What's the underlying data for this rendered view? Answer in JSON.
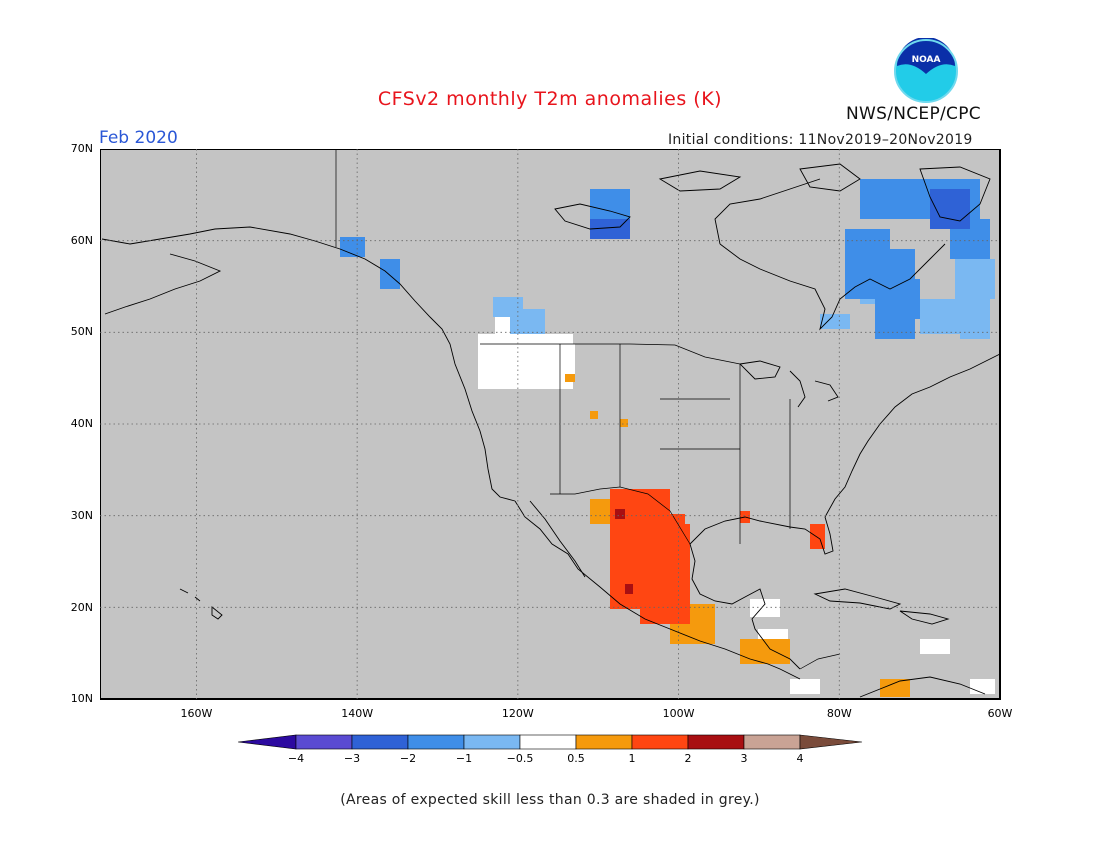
{
  "title": "CFSv2 monthly T2m anomalies (K)",
  "agency": "NWS/NCEP/CPC",
  "logo_text": "NOAA",
  "valid_month": "Feb 2020",
  "initial_conditions": "Initial conditions: 11Nov2019–20Nov2019",
  "lat_labels": [
    "70N",
    "60N",
    "50N",
    "40N",
    "30N",
    "20N",
    "10N"
  ],
  "lon_labels": [
    "160W",
    "140W",
    "120W",
    "100W",
    "80W",
    "60W"
  ],
  "colorbar": {
    "tick_labels": [
      "−4",
      "−3",
      "−2",
      "−1",
      "−0.5",
      "0.5",
      "1",
      "2",
      "3",
      "4"
    ],
    "colors": [
      "#2c0aa0",
      "#5a4bd2",
      "#2f62d6",
      "#3f8ee8",
      "#7ab8f2",
      "#ffffff",
      "#f59a0d",
      "#ff4612",
      "#a80f12",
      "#c9a395",
      "#7a4b3a"
    ]
  },
  "note": "(Areas of expected skill less than 0.3 are shaded in grey.)",
  "colors": {
    "title": "#e8141c",
    "month": "#2a57d6",
    "skill_grey": "#c4c4c4"
  }
}
